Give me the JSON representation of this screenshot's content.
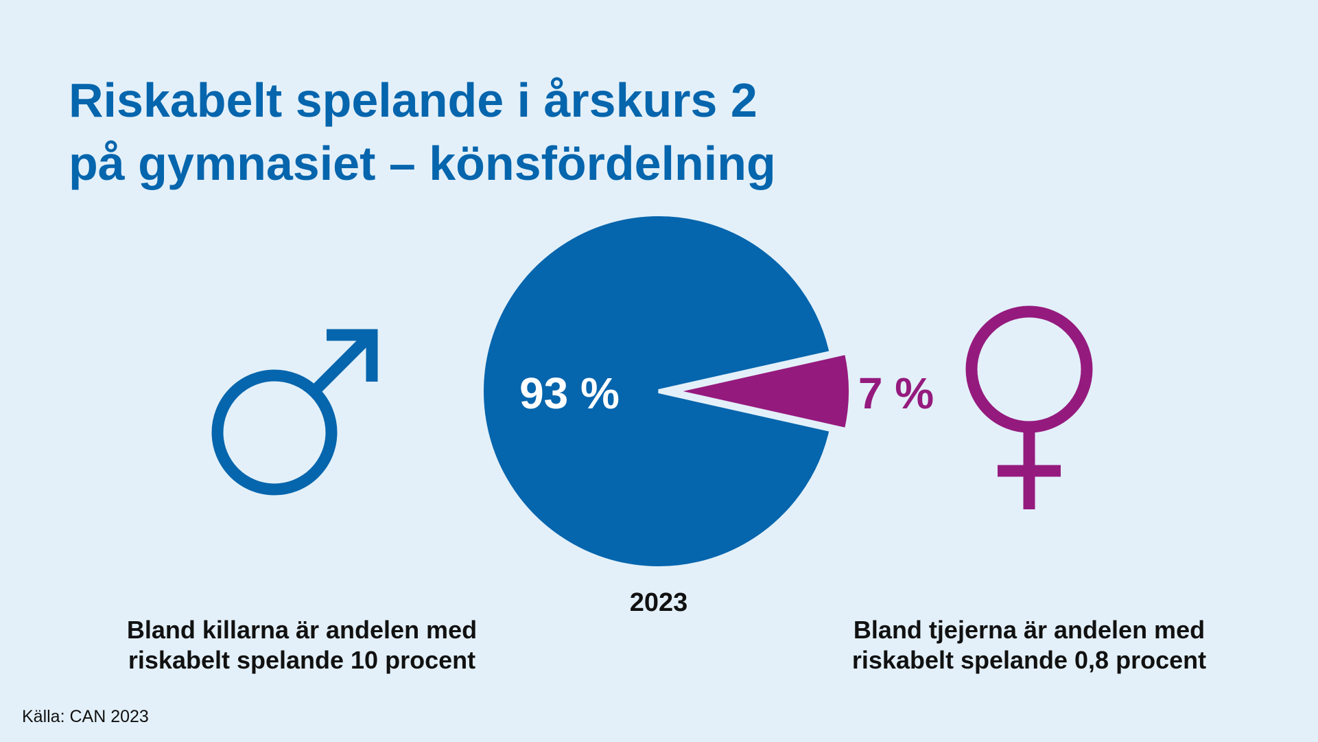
{
  "title": {
    "line1": "Riskabelt spelande i årskurs 2",
    "line2": "på gymnasiet – könsfördelning"
  },
  "chart_data": {
    "type": "pie",
    "categories": [
      "Killar",
      "Tjejer"
    ],
    "values": [
      93,
      7
    ],
    "data_labels": [
      "93 %",
      "7 %"
    ],
    "xlabel": "2023",
    "colors": [
      "#0565ad",
      "#951a7e"
    ],
    "exploded": [
      false,
      true
    ]
  },
  "icons": {
    "left": "male-symbol-icon",
    "right": "female-symbol-icon",
    "left_color": "#0565ad",
    "right_color": "#951a7e"
  },
  "captions": {
    "left_line1": "Bland killarna är andelen med",
    "left_line2": "riskabelt spelande 10 procent",
    "right_line1": "Bland tjejerna är andelen med",
    "right_line2": "riskabelt spelande 0,8 procent"
  },
  "source": "Källa: CAN 2023"
}
